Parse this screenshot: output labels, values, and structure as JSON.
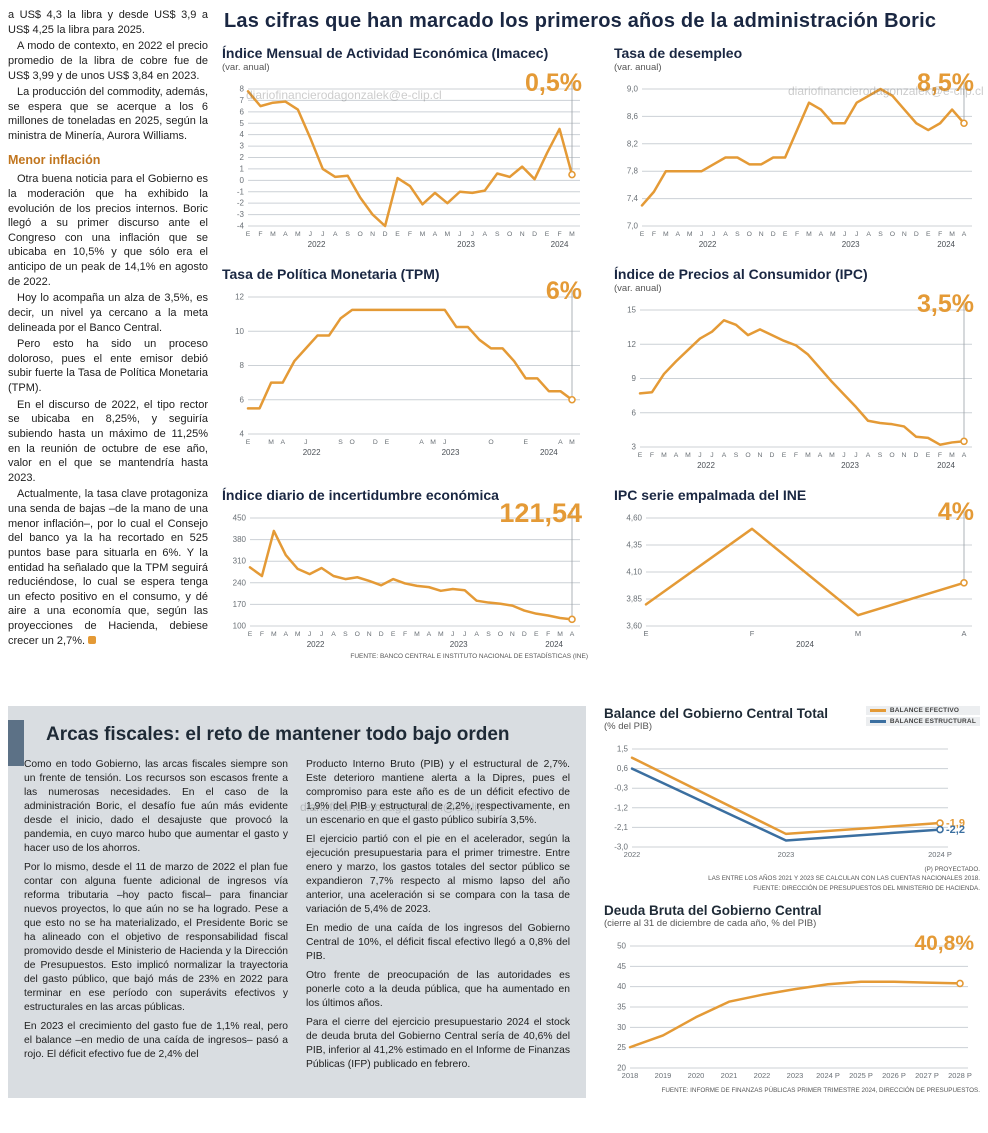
{
  "watermark": "diariofinancierodagonzalek@e-clip.cl",
  "main_title": "Las cifras que han marcado los primeros años de la administración Boric",
  "left_article": {
    "paragraphs": [
      "a US$ 4,3 la libra y desde US$ 3,9 a US$ 4,25 la libra para 2025.",
      "A modo de contexto, en 2022 el precio promedio de la libra de cobre fue de US$ 3,99 y de unos US$ 3,84 en 2023.",
      "La producción del commodity, además, se espera que se acerque a los 6 millones de toneladas en 2025, según la ministra de Minería, Aurora Williams."
    ],
    "heading": "Menor inflación",
    "paragraphs2": [
      "Otra buena noticia para el Gobierno es la moderación que ha exhibido la evolución de los precios internos. Boric llegó a su primer discurso ante el Congreso con una inflación que se ubicaba en 10,5% y que sólo era el anticipo de un peak de 14,1% en agosto de 2022.",
      "Hoy lo acompaña un alza de 3,5%, es decir, un nivel ya cercano a la meta delineada por el Banco Central.",
      "Pero esto ha sido un proceso doloroso, pues el ente emisor debió subir fuerte la Tasa de Política Monetaria (TPM).",
      "En el discurso de 2022, el tipo rector se ubicaba en 8,25%, y seguiría subiendo hasta un máximo de 11,25% en la reunión de octubre de ese año, valor en el que se mantendría hasta 2023.",
      "Actualmente, la tasa clave protagoniza una senda de bajas –de la mano de una menor inflación–, por lo cual el Consejo del banco ya la ha recortado en 525 puntos base para situarla en 6%. Y la entidad ha señalado que la TPM seguirá reduciéndose, lo cual se espera tenga un efecto positivo en el consumo, y dé aire a una economía que, según las proyecciones de Hacienda, debiese crecer un 2,7%."
    ]
  },
  "fiscal": {
    "title": "Arcas fiscales: el reto de mantener todo bajo orden",
    "col1": [
      "Como en todo Gobierno, las arcas fiscales siempre son un frente de tensión. Los recursos son escasos frente a las numerosas necesidades. En el caso de la administración Boric, el desafío fue aún más evidente desde el inicio, dado el desajuste que provocó la pandemia, en cuyo marco hubo que aumentar el gasto y hacer uso de los ahorros.",
      "Por lo mismo, desde el 11 de marzo de 2022 el plan fue contar con alguna fuente adicional de ingresos vía reforma tributaria –hoy pacto fiscal– para financiar nuevos proyectos, lo que aún no se ha logrado. Pese a que esto no se ha materializado, el Presidente Boric se ha alineado con el objetivo de responsabilidad fiscal promovido desde el Ministerio de Hacienda y la Dirección de Presupuestos. Esto implicó normalizar la trayectoria del gasto público, que bajó más de 23% en 2022 para terminar en ese período con superávits efectivos y estructurales en las arcas públicas.",
      "En 2023 el crecimiento del gasto fue de 1,1% real, pero el balance –en medio de una caída de ingresos– pasó a rojo. El déficit efectivo fue de 2,4% del"
    ],
    "col2": [
      "Producto Interno Bruto (PIB) y el estructural de 2,7%. Este deterioro mantiene alerta a la Dipres, pues el compromiso para este año es de un déficit efectivo de 1,9% del PIB y estructural de 2,2%, respectivamente, en un escenario en que el gasto público subiría 3,5%.",
      "El ejercicio partió con el pie en el acelerador, según la ejecución presupuestaria para el primer trimestre. Entre enero y marzo, los gastos totales del sector público se expandieron 7,7% respecto al mismo lapso del año anterior, una aceleración si se compara con la tasa de variación de 5,4% de 2023.",
      "En medio de una caída de los ingresos del Gobierno Central de 10%, el déficit fiscal efectivo llegó a 0,8% del PIB.",
      "Otro frente de preocupación de las autoridades es ponerle coto a la deuda pública, que ha aumentado en los últimos años.",
      "Para el cierre del ejercicio presupuestario 2024 el stock de deuda bruta del Gobierno Central sería de 40,6% del PIB, inferior al 41,2% estimado en el Informe de Finanzas Públicas (IFP) publicado en febrero."
    ],
    "balance_footnotes": [
      "(P) PROYECTADO.",
      "LAS ENTRE LOS AÑOS 2021 Y 2023 SE CALCULAN CON LAS CUENTAS NACIONALES 2018.",
      "FUENTE: DIRECCIÓN DE PRESUPUESTOS DEL MINISTERIO DE HACIENDA."
    ],
    "deuda_footnote": "FUENTE: INFORME DE FINANZAS PÚBLICAS PRIMER TRIMESTRE 2024, DIRECCIÓN DE PRESUPUESTOS."
  },
  "accent_colors": {
    "orange": "#e49a36",
    "blue": "#3b6fa0",
    "navy": "#1a2742"
  },
  "chart_data": [
    {
      "type": "line",
      "title": "Índice Mensual de Actividad Económica (Imacec)",
      "subtitle": "(var. anual)",
      "big_value": "0,5%",
      "ymin": -4,
      "ymax": 8,
      "yticks": [
        8,
        7,
        6,
        5,
        4,
        3,
        2,
        1,
        0,
        -1,
        -2,
        -3,
        -4
      ],
      "ylabels": [
        "8",
        "7",
        "6",
        "5",
        "4",
        "3",
        "2",
        "1",
        "0",
        "-1",
        "-2",
        "-3",
        "-4"
      ],
      "x_labels": [
        "E",
        "F",
        "M",
        "A",
        "M",
        "J",
        "J",
        "A",
        "S",
        "O",
        "N",
        "D",
        "E",
        "F",
        "M",
        "A",
        "M",
        "J",
        "J",
        "A",
        "S",
        "O",
        "N",
        "D",
        "E",
        "F",
        "M"
      ],
      "years": [
        {
          "label": "2022",
          "from": 0,
          "to": 11
        },
        {
          "label": "2023",
          "from": 12,
          "to": 23
        },
        {
          "label": "2024",
          "from": 24,
          "to": 26
        }
      ],
      "series": [
        {
          "name": "Imacec",
          "color": "#e49a36",
          "values": [
            7.8,
            6.5,
            6.8,
            6.9,
            6.2,
            3.7,
            1.0,
            0.3,
            0.4,
            -1.5,
            -3.0,
            -4.0,
            0.2,
            -0.5,
            -2.1,
            -1.1,
            -2.0,
            -1.0,
            -1.1,
            -0.9,
            0.6,
            0.3,
            1.2,
            0.1,
            2.4,
            4.5,
            0.5
          ]
        }
      ],
      "end_marker": true,
      "drop_line": true
    },
    {
      "type": "line",
      "title": "Tasa de desempleo",
      "subtitle": "(var. anual)",
      "big_value": "8,5%",
      "ymin": 7.0,
      "ymax": 9.0,
      "yticks": [
        9.0,
        8.6,
        8.2,
        7.8,
        7.4,
        7.0
      ],
      "ylabels": [
        "9,0",
        "8,6",
        "8,2",
        "7,8",
        "7,4",
        "7,0"
      ],
      "x_labels": [
        "E",
        "F",
        "M",
        "A",
        "M",
        "J",
        "J",
        "A",
        "S",
        "O",
        "N",
        "D",
        "E",
        "F",
        "M",
        "A",
        "M",
        "J",
        "J",
        "A",
        "S",
        "O",
        "N",
        "D",
        "E",
        "F",
        "M",
        "A"
      ],
      "years": [
        {
          "label": "2022",
          "from": 0,
          "to": 11
        },
        {
          "label": "2023",
          "from": 12,
          "to": 23
        },
        {
          "label": "2024",
          "from": 24,
          "to": 27
        }
      ],
      "series": [
        {
          "name": "Tasa de desempleo",
          "color": "#e49a36",
          "values": [
            7.3,
            7.5,
            7.8,
            7.8,
            7.8,
            7.8,
            7.9,
            8.0,
            8.0,
            7.9,
            7.9,
            8.0,
            8.0,
            8.4,
            8.8,
            8.7,
            8.5,
            8.5,
            8.8,
            8.9,
            9.0,
            8.9,
            8.7,
            8.5,
            8.4,
            8.5,
            8.7,
            8.5
          ]
        }
      ],
      "end_marker": true,
      "drop_line": true
    },
    {
      "type": "line",
      "title": "Tasa de Política Monetaria (TPM)",
      "subtitle": "",
      "big_value": "6%",
      "ymin": 4,
      "ymax": 12,
      "yticks": [
        12,
        10,
        8,
        6,
        4
      ],
      "ylabels": [
        "12",
        "10",
        "8",
        "6",
        "4"
      ],
      "x_labels": [
        "E",
        "",
        "M",
        "A",
        "",
        "J",
        "",
        "",
        "S",
        "O",
        "",
        "D",
        "E",
        "",
        "",
        "A",
        "M",
        "J",
        "",
        "",
        "",
        "O",
        "",
        "",
        "E",
        "",
        "",
        "A",
        "M"
      ],
      "years": [
        {
          "label": "2022",
          "from": 0,
          "to": 11
        },
        {
          "label": "2023",
          "from": 12,
          "to": 23
        },
        {
          "label": "2024",
          "from": 24,
          "to": 28
        }
      ],
      "series": [
        {
          "name": "TPM",
          "color": "#e49a36",
          "values": [
            5.5,
            5.5,
            7,
            7,
            8.25,
            9,
            9.75,
            9.75,
            10.75,
            11.25,
            11.25,
            11.25,
            11.25,
            11.25,
            11.25,
            11.25,
            11.25,
            11.25,
            10.25,
            10.25,
            9.5,
            9,
            9,
            8.25,
            7.25,
            7.25,
            6.5,
            6.5,
            6
          ]
        }
      ],
      "end_marker": true,
      "drop_line": true
    },
    {
      "type": "line",
      "title": "Índice de Precios al Consumidor (IPC)",
      "subtitle": "(var. anual)",
      "big_value": "3,5%",
      "ymin": 3,
      "ymax": 15,
      "yticks": [
        15,
        12,
        9,
        6,
        3
      ],
      "ylabels": [
        "15",
        "12",
        "9",
        "6",
        "3"
      ],
      "x_labels": [
        "E",
        "F",
        "M",
        "A",
        "M",
        "J",
        "J",
        "A",
        "S",
        "O",
        "N",
        "D",
        "E",
        "F",
        "M",
        "A",
        "M",
        "J",
        "J",
        "A",
        "S",
        "O",
        "N",
        "D",
        "E",
        "F",
        "M",
        "A"
      ],
      "years": [
        {
          "label": "2022",
          "from": 0,
          "to": 11
        },
        {
          "label": "2023",
          "from": 12,
          "to": 23
        },
        {
          "label": "2024",
          "from": 24,
          "to": 27
        }
      ],
      "series": [
        {
          "name": "IPC",
          "color": "#e49a36",
          "values": [
            7.7,
            7.8,
            9.4,
            10.5,
            11.5,
            12.5,
            13.1,
            14.1,
            13.7,
            12.8,
            13.3,
            12.8,
            12.3,
            11.9,
            11.1,
            9.9,
            8.7,
            7.6,
            6.5,
            5.3,
            5.1,
            5.0,
            4.8,
            3.9,
            3.8,
            3.2,
            3.4,
            3.5
          ]
        }
      ],
      "end_marker": true,
      "drop_line": true
    },
    {
      "type": "line",
      "title": "Índice diario de incertidumbre económica",
      "subtitle": "",
      "big_value": "121,54",
      "source": "FUENTE: BANCO CENTRAL E INSTITUTO NACIONAL DE ESTADÍSTICAS (INE)",
      "ymin": 100,
      "ymax": 450,
      "yticks": [
        450,
        380,
        310,
        240,
        170,
        100
      ],
      "ylabels": [
        "450",
        "380",
        "310",
        "240",
        "170",
        "100"
      ],
      "x_labels": [
        "E",
        "F",
        "M",
        "A",
        "M",
        "J",
        "J",
        "A",
        "S",
        "O",
        "N",
        "D",
        "E",
        "F",
        "M",
        "A",
        "M",
        "J",
        "J",
        "A",
        "S",
        "O",
        "N",
        "D",
        "E",
        "F",
        "M",
        "A"
      ],
      "years": [
        {
          "label": "2022",
          "from": 0,
          "to": 11
        },
        {
          "label": "2023",
          "from": 12,
          "to": 23
        },
        {
          "label": "2024",
          "from": 24,
          "to": 27
        }
      ],
      "series": [
        {
          "name": "Incertidumbre económica",
          "color": "#e49a36",
          "values": [
            290,
            262,
            408,
            330,
            285,
            268,
            288,
            262,
            252,
            258,
            246,
            232,
            252,
            238,
            230,
            226,
            214,
            220,
            216,
            182,
            176,
            172,
            166,
            150,
            140,
            134,
            126,
            121.54
          ]
        }
      ],
      "end_marker": true,
      "drop_line": true
    },
    {
      "type": "line",
      "title": "IPC serie empalmada del INE",
      "subtitle": "",
      "big_value": "4%",
      "ymin": 3.6,
      "ymax": 4.6,
      "yticks": [
        4.6,
        4.35,
        4.1,
        3.85,
        3.6
      ],
      "ylabels": [
        "4,60",
        "4,35",
        "4,10",
        "3,85",
        "3,60"
      ],
      "x_labels": [
        "E",
        "F",
        "M",
        "A"
      ],
      "years": [
        {
          "label": "2024",
          "from": 0,
          "to": 3
        }
      ],
      "series": [
        {
          "name": "IPC serie empalmada",
          "color": "#e49a36",
          "values": [
            3.8,
            4.5,
            3.7,
            4.0
          ]
        }
      ],
      "end_marker": true,
      "drop_line": true
    },
    {
      "type": "line",
      "title": "Balance del Gobierno Central Total",
      "subtitle": "(% del PIB)",
      "ymin": -3.0,
      "ymax": 1.5,
      "yticks": [
        1.5,
        0.6,
        -0.3,
        -1.2,
        -2.1,
        -3.0
      ],
      "ylabels": [
        "1,5",
        "0,6",
        "-0,3",
        "-1,2",
        "-2,1",
        "-3,0"
      ],
      "x_labels": [
        "2022",
        "2023",
        "2024 P"
      ],
      "series": [
        {
          "name": "BALANCE EFECTIVO",
          "color": "#e49a36",
          "values": [
            1.1,
            -2.4,
            -1.9
          ],
          "end_label": "-1,9"
        },
        {
          "name": "BALANCE ESTRUCTURAL",
          "color": "#3b6fa0",
          "values": [
            0.6,
            -2.7,
            -2.2
          ],
          "end_label": "-2,2"
        }
      ],
      "end_marker": true,
      "drop_line": false
    },
    {
      "type": "line",
      "title": "Deuda Bruta del Gobierno Central",
      "subtitle": "(cierre al 31 de diciembre de cada año, % del PIB)",
      "big_value": "40,8%",
      "ymin": 20,
      "ymax": 50,
      "yticks": [
        50,
        45,
        40,
        35,
        30,
        25,
        20
      ],
      "ylabels": [
        "50",
        "45",
        "40",
        "35",
        "30",
        "25",
        "20"
      ],
      "x_labels": [
        "2018",
        "2019",
        "2020",
        "2021",
        "2022",
        "2023",
        "2024 P",
        "2025 P",
        "2026 P",
        "2027 P",
        "2028 P"
      ],
      "series": [
        {
          "name": "Deuda bruta",
          "color": "#e49a36",
          "values": [
            25.1,
            28.0,
            32.5,
            36.3,
            38.0,
            39.4,
            40.6,
            41.2,
            41.2,
            41.0,
            40.8
          ]
        }
      ],
      "end_marker": true,
      "drop_line": false
    }
  ]
}
